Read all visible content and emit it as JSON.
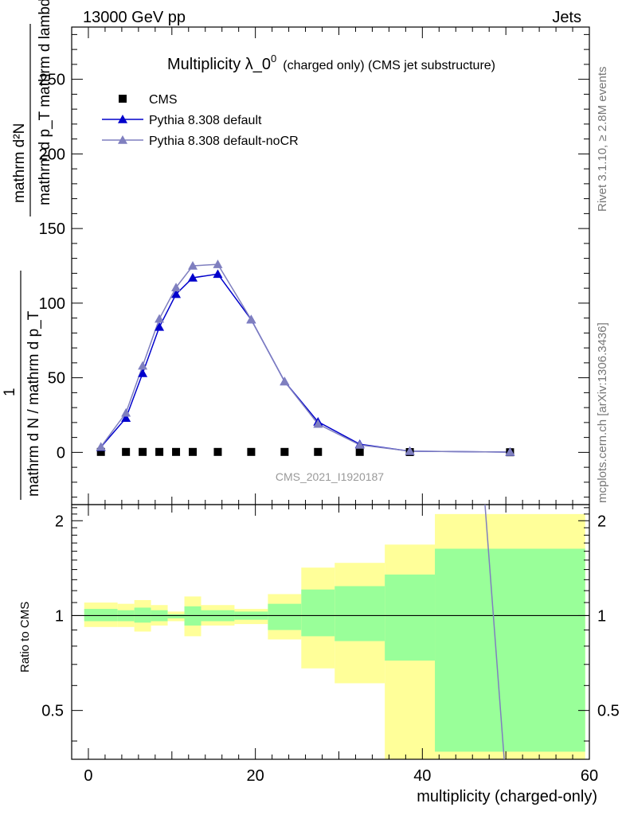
{
  "header": {
    "energy_label": "13000 GeV pp",
    "process_label": "Jets"
  },
  "side_labels": {
    "rivet": "Rivet 3.1.10, ≥ 2.8M events",
    "mcplots": "mcplots.cern.ch [arXiv:1306.3436]"
  },
  "chart_data": {
    "type": "scatter",
    "title_main": "Multiplicity λ_0",
    "title_sup": "0",
    "title_rest": "(charged only) (CMS jet substructure)",
    "analysis_id": "CMS_2021_I1920187",
    "xlabel": "multiplicity (charged-only)",
    "ylabel_top": {
      "numerator": "mathrm d²N",
      "denominator": "mathrm d p_T mathrm d lambda"
    },
    "ylabel_bottom": {
      "numerator": "1",
      "denominator": "mathrm d N / mathrm d p_T"
    },
    "ratio_ylabel": "Ratio to CMS",
    "xlim": [
      -2,
      60
    ],
    "ylim": [
      -35,
      285
    ],
    "ratio_ylim": [
      0.35,
      2.25
    ],
    "x_ticks": [
      0,
      20,
      40,
      60
    ],
    "y_ticks": [
      0,
      50,
      100,
      150,
      200,
      250
    ],
    "ratio_ticks": [
      0.5,
      1,
      2
    ],
    "ratio_tick_labels": [
      "0.5",
      "1",
      "2"
    ],
    "legend_position": "top-left",
    "series": [
      {
        "name": "CMS",
        "marker": "square",
        "color": "#000000",
        "x": [
          1.5,
          4.5,
          6.5,
          8.5,
          10.5,
          12.5,
          15.5,
          19.5,
          23.5,
          27.5,
          32.5,
          38.5,
          50.5
        ],
        "y": [
          0.3,
          0.3,
          0.3,
          0.3,
          0.3,
          0.3,
          0.3,
          0.3,
          0.3,
          0.3,
          0.3,
          0.2,
          0.1
        ]
      },
      {
        "name": "Pythia 8.308 default",
        "marker": "triangle",
        "color": "#0000cc",
        "x": [
          1.5,
          4.5,
          6.5,
          8.5,
          10.5,
          12.5,
          15.5,
          19.5,
          23.5,
          27.5,
          32.5,
          38.5,
          50.5
        ],
        "y": [
          3.5,
          23,
          53,
          84,
          106,
          117,
          119.5,
          89,
          47.5,
          20.5,
          5.5,
          0.8,
          0.2
        ]
      },
      {
        "name": "Pythia 8.308 default-noCR",
        "marker": "triangle",
        "color": "#7f7fbf",
        "x": [
          1.5,
          4.5,
          6.5,
          8.5,
          10.5,
          12.5,
          15.5,
          19.5,
          23.5,
          27.5,
          32.5,
          38.5,
          50.5
        ],
        "y": [
          3.7,
          26.5,
          58,
          89.5,
          110.5,
          125,
          126,
          89,
          47.5,
          19,
          5,
          0.8,
          0.2
        ]
      }
    ],
    "ratio_bands": [
      {
        "x0": -0.5,
        "x1": 3.5,
        "y_lo": 0.92,
        "y_hi": 1.1,
        "g_lo": 0.96,
        "g_hi": 1.05
      },
      {
        "x0": 3.5,
        "x1": 5.5,
        "y_lo": 0.92,
        "y_hi": 1.09,
        "g_lo": 0.96,
        "g_hi": 1.04
      },
      {
        "x0": 5.5,
        "x1": 7.5,
        "y_lo": 0.89,
        "y_hi": 1.12,
        "g_lo": 0.95,
        "g_hi": 1.06
      },
      {
        "x0": 7.5,
        "x1": 9.5,
        "y_lo": 0.93,
        "y_hi": 1.08,
        "g_lo": 0.96,
        "g_hi": 1.04
      },
      {
        "x0": 9.5,
        "x1": 11.5,
        "y_lo": 0.96,
        "y_hi": 1.03,
        "g_lo": 0.98,
        "g_hi": 1.01
      },
      {
        "x0": 11.5,
        "x1": 13.5,
        "y_lo": 0.86,
        "y_hi": 1.15,
        "g_lo": 0.93,
        "g_hi": 1.07
      },
      {
        "x0": 13.5,
        "x1": 17.5,
        "y_lo": 0.93,
        "y_hi": 1.08,
        "g_lo": 0.96,
        "g_hi": 1.04
      },
      {
        "x0": 17.5,
        "x1": 21.5,
        "y_lo": 0.94,
        "y_hi": 1.05,
        "g_lo": 0.97,
        "g_hi": 1.03
      },
      {
        "x0": 21.5,
        "x1": 25.5,
        "y_lo": 0.84,
        "y_hi": 1.17,
        "g_lo": 0.9,
        "g_hi": 1.09
      },
      {
        "x0": 25.5,
        "x1": 29.5,
        "y_lo": 0.68,
        "y_hi": 1.42,
        "g_lo": 0.86,
        "g_hi": 1.21
      },
      {
        "x0": 29.5,
        "x1": 35.5,
        "y_lo": 0.61,
        "y_hi": 1.47,
        "g_lo": 0.83,
        "g_hi": 1.24
      },
      {
        "x0": 35.5,
        "x1": 41.5,
        "y_lo": 0.35,
        "y_hi": 1.68,
        "g_lo": 0.72,
        "g_hi": 1.35
      },
      {
        "x0": 41.5,
        "x1": 59.5,
        "y_lo": 0.35,
        "y_hi": 2.1,
        "g_lo": 0.37,
        "g_hi": 1.63
      }
    ],
    "ratio_line": {
      "color": "#7f7fbf",
      "x": [
        47.5,
        49.8
      ],
      "y": [
        2.25,
        0.35
      ]
    }
  }
}
